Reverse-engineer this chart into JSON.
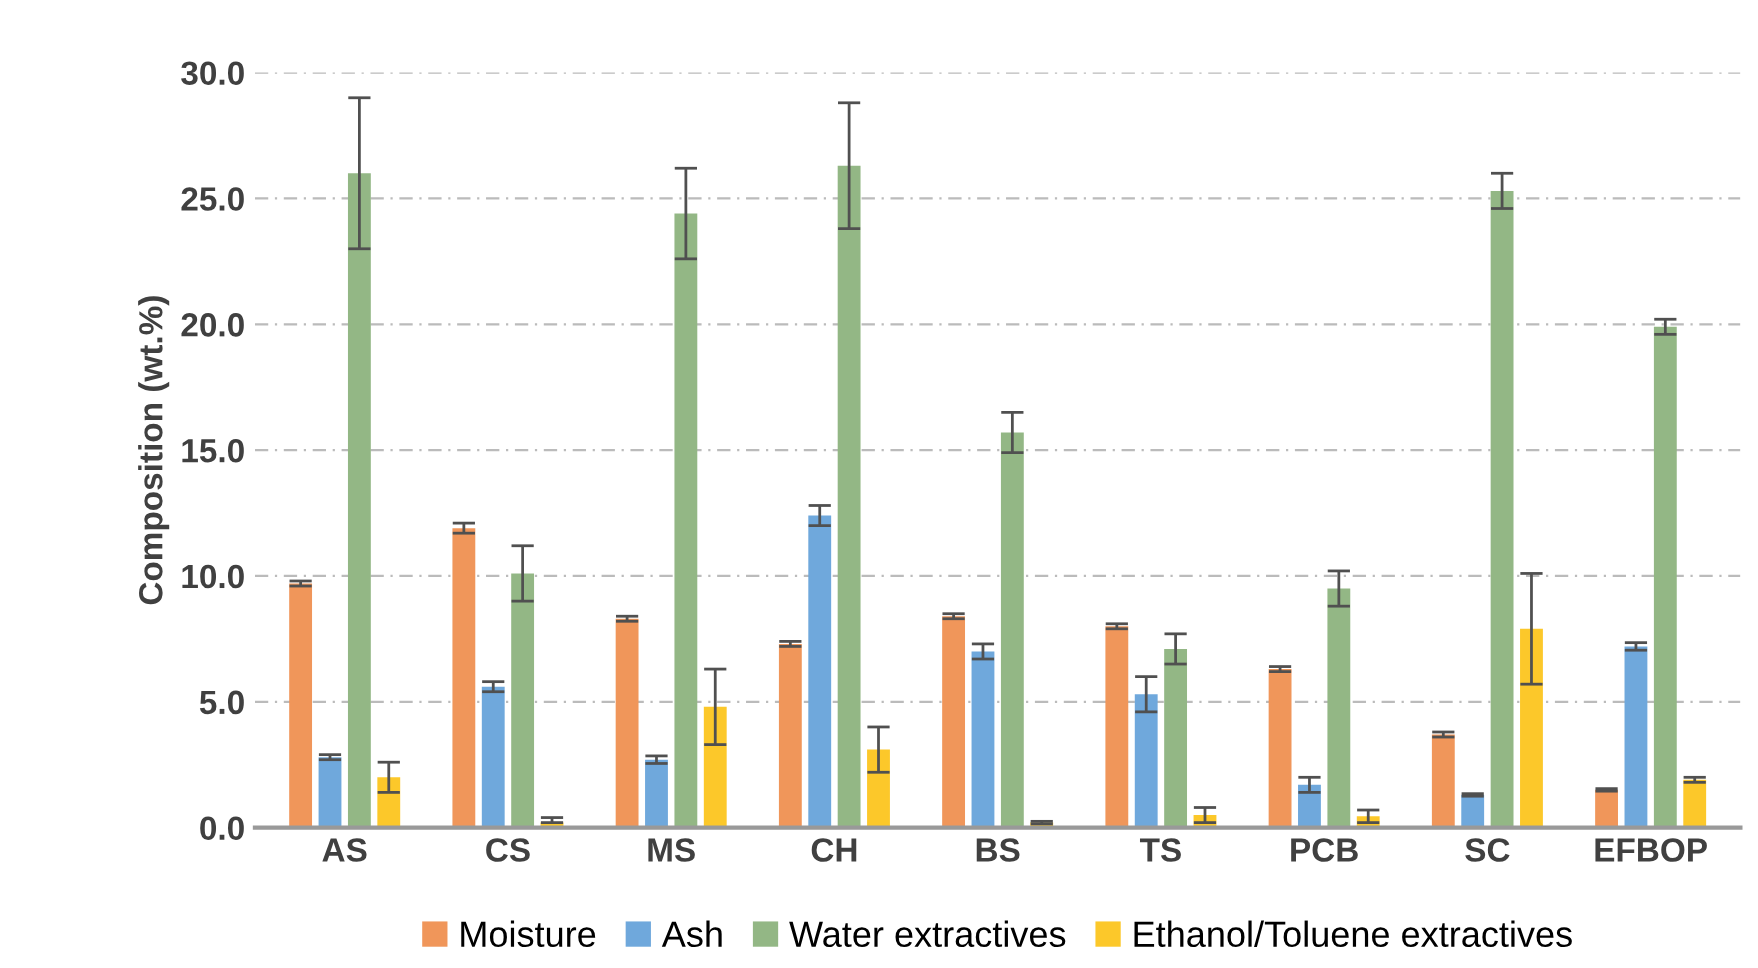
{
  "chart_data": {
    "type": "bar",
    "ylabel": "Composition (wt.%)",
    "categories": [
      "AS",
      "CS",
      "MS",
      "CH",
      "BS",
      "TS",
      "PCB",
      "SC",
      "EFBOP"
    ],
    "series": [
      {
        "name": "Moisture",
        "color": "#f0965a",
        "values": [
          9.7,
          11.9,
          8.3,
          7.3,
          8.4,
          8.0,
          6.3,
          3.7,
          1.5
        ],
        "errors": [
          0.1,
          0.2,
          0.1,
          0.1,
          0.1,
          0.1,
          0.1,
          0.1,
          0.05
        ]
      },
      {
        "name": "Ash",
        "color": "#6fa8dc",
        "values": [
          2.8,
          5.6,
          2.7,
          12.4,
          7.0,
          5.3,
          1.7,
          1.3,
          7.2
        ],
        "errors": [
          0.1,
          0.2,
          0.15,
          0.4,
          0.3,
          0.7,
          0.3,
          0.05,
          0.15
        ]
      },
      {
        "name": "Water extractives",
        "color": "#93b785",
        "values": [
          26.0,
          10.1,
          24.4,
          26.3,
          15.7,
          7.1,
          9.5,
          25.3,
          19.9
        ],
        "errors": [
          3.0,
          1.1,
          1.8,
          2.5,
          0.8,
          0.6,
          0.7,
          0.7,
          0.3
        ]
      },
      {
        "name": "Ethanol/Toluene extractives",
        "color": "#fcc82a",
        "values": [
          2.0,
          0.2,
          4.8,
          3.1,
          0.2,
          0.5,
          0.45,
          7.9,
          1.9
        ],
        "errors": [
          0.6,
          [
            0.2,
            0.4
          ],
          1.5,
          0.9,
          0.05,
          0.3,
          0.25,
          2.2,
          0.1
        ]
      }
    ],
    "ylim": [
      0,
      30
    ],
    "yticks": [
      {
        "value": 0,
        "label": "0.0"
      },
      {
        "value": 5,
        "label": "5.0"
      },
      {
        "value": 10,
        "label": "10.0"
      },
      {
        "value": 15,
        "label": "15.0"
      },
      {
        "value": 20,
        "label": "20.0"
      },
      {
        "value": 25,
        "label": "25.0"
      },
      {
        "value": 30,
        "label": "30.0"
      }
    ],
    "grid": "y",
    "legend": "bottom"
  }
}
